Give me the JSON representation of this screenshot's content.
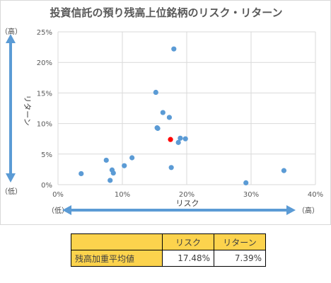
{
  "title": "投資信託の預り残高上位銘柄のリスク・リターン",
  "chart_data": {
    "type": "scatter",
    "title": "投資信託の預り残高上位銘柄のリスク・リターン",
    "xlabel": "リスク",
    "ylabel": "リターン",
    "xlim": [
      0,
      40
    ],
    "ylim": [
      0,
      25
    ],
    "x_ticks": [
      "0%",
      "10%",
      "20%",
      "30%",
      "40%"
    ],
    "y_ticks": [
      "0%",
      "5%",
      "10%",
      "15%",
      "20%",
      "25%"
    ],
    "grid": true,
    "series": [
      {
        "color": "#5b9bd5",
        "points": [
          {
            "x": 18.0,
            "y": 22.2
          },
          {
            "x": 15.2,
            "y": 15.1
          },
          {
            "x": 16.3,
            "y": 11.8
          },
          {
            "x": 17.3,
            "y": 11.0
          },
          {
            "x": 15.4,
            "y": 9.3
          },
          {
            "x": 15.5,
            "y": 9.2
          },
          {
            "x": 19.0,
            "y": 7.6
          },
          {
            "x": 19.8,
            "y": 7.5
          },
          {
            "x": 18.7,
            "y": 6.9
          },
          {
            "x": 11.5,
            "y": 4.4
          },
          {
            "x": 7.5,
            "y": 4.0
          },
          {
            "x": 10.3,
            "y": 3.1
          },
          {
            "x": 17.6,
            "y": 2.8
          },
          {
            "x": 8.4,
            "y": 2.4
          },
          {
            "x": 8.6,
            "y": 1.9
          },
          {
            "x": 3.6,
            "y": 1.8
          },
          {
            "x": 8.1,
            "y": 0.7
          },
          {
            "x": 29.2,
            "y": 0.3
          },
          {
            "x": 35.1,
            "y": 2.3
          }
        ]
      },
      {
        "color": "#ff0000",
        "points": [
          {
            "x": 17.48,
            "y": 7.39
          }
        ]
      }
    ]
  },
  "axis_annotations": {
    "y_high": "（高）",
    "y_low": "（低）",
    "x_low": "（低）",
    "x_high": "（高）"
  },
  "arrow_color": "#5b9bd5",
  "table": {
    "headers": [
      "リスク",
      "リターン"
    ],
    "rows": [
      {
        "label": "残高加重平均値",
        "values": [
          "17.48%",
          "7.39%"
        ]
      }
    ]
  }
}
